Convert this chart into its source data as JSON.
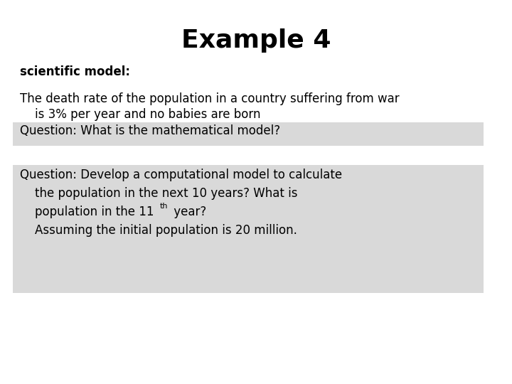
{
  "title": "Example 4",
  "title_fontsize": 26,
  "title_fontweight": "bold",
  "bg_color": "#ffffff",
  "label_text": "scientific model:",
  "label_fontsize": 12,
  "label_fontweight": "bold",
  "body_text_line1": "The death rate of the population in a country suffering from war",
  "body_text_line2": "    is 3% per year and no babies are born",
  "body_fontsize": 12,
  "q1_text": "Question: What is the mathematical model?",
  "q1_fontsize": 12,
  "q1_bg": "#d9d9d9",
  "q2_line1": "Question: Develop a computational model to calculate",
  "q2_line2": "    the population in the next 10 years? What is",
  "q2_line3_pre": "    population in the 11",
  "q2_line3_sup": "th",
  "q2_line3_post": " year?",
  "q2_line4": "    Assuming the initial population is 20 million.",
  "q2_fontsize": 12,
  "q2_bg": "#d9d9d9",
  "text_color": "#000000"
}
